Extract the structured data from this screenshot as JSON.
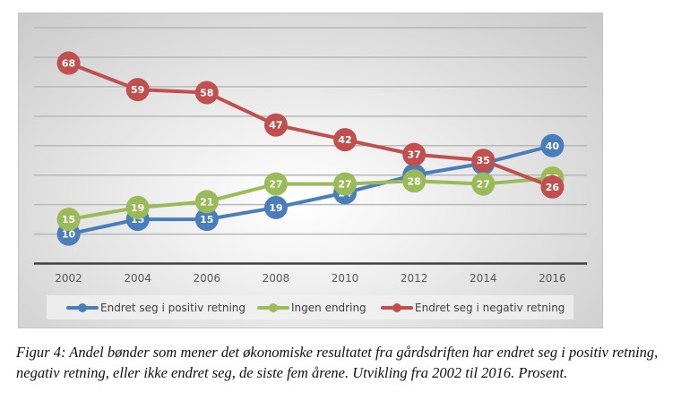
{
  "chart_data": {
    "type": "line",
    "title": "",
    "xlabel": "",
    "ylabel": "",
    "categories": [
      "2002",
      "2004",
      "2006",
      "2008",
      "2010",
      "2012",
      "2014",
      "2016"
    ],
    "ylim": [
      0,
      80
    ],
    "gridlines": [
      10,
      20,
      30,
      40,
      50,
      60,
      70,
      80
    ],
    "grid": true,
    "legend_position": "bottom",
    "series": [
      {
        "name": "Endret seg i positiv retning",
        "color": "#4a7ebb",
        "values": [
          10,
          15,
          15,
          19,
          24,
          30,
          34,
          40
        ]
      },
      {
        "name": "Ingen endring",
        "color": "#9bbb59",
        "values": [
          15,
          19,
          21,
          27,
          27,
          28,
          27,
          29
        ]
      },
      {
        "name": "Endret seg i negativ retning",
        "color": "#c0504d",
        "values": [
          68,
          59,
          58,
          47,
          42,
          37,
          35,
          26
        ]
      }
    ]
  },
  "caption": "Figur 4: Andel bønder som mener det økonomiske resultatet fra gårdsdriften har endret seg i positiv retning, negativ retning, eller ikke endret seg, de siste fem årene. Utvikling fra 2002 til 2016. Prosent."
}
